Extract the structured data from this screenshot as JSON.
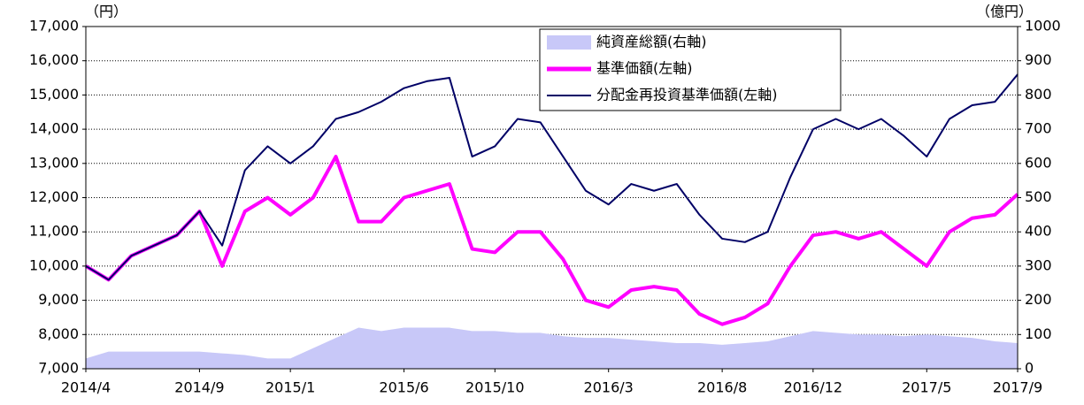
{
  "chart_data": {
    "type": "line",
    "y_label": "（円）",
    "y2_label": "（億円）",
    "x": [
      "2014/4",
      "2014/5",
      "2014/6",
      "2014/7",
      "2014/8",
      "2014/9",
      "2014/10",
      "2014/11",
      "2014/12",
      "2015/1",
      "2015/2",
      "2015/3",
      "2015/4",
      "2015/5",
      "2015/6",
      "2015/7",
      "2015/8",
      "2015/9",
      "2015/10",
      "2015/11",
      "2015/12",
      "2016/1",
      "2016/2",
      "2016/3",
      "2016/4",
      "2016/5",
      "2016/6",
      "2016/7",
      "2016/8",
      "2016/9",
      "2016/10",
      "2016/11",
      "2016/12",
      "2017/1",
      "2017/2",
      "2017/3",
      "2017/4",
      "2017/5",
      "2017/6",
      "2017/7",
      "2017/8",
      "2017/9"
    ],
    "xticks": [
      "2014/4",
      "2014/9",
      "2015/1",
      "2015/6",
      "2015/10",
      "2016/3",
      "2016/8",
      "2016/12",
      "2017/5",
      "2017/9"
    ],
    "ylim": [
      7000,
      17000
    ],
    "yticks": [
      {
        "value": 7000,
        "label": "7,000"
      },
      {
        "value": 8000,
        "label": "8,000"
      },
      {
        "value": 9000,
        "label": "9,000"
      },
      {
        "value": 10000,
        "label": "10,000"
      },
      {
        "value": 11000,
        "label": "11,000"
      },
      {
        "value": 12000,
        "label": "12,000"
      },
      {
        "value": 13000,
        "label": "13,000"
      },
      {
        "value": 14000,
        "label": "14,000"
      },
      {
        "value": 15000,
        "label": "15,000"
      },
      {
        "value": 16000,
        "label": "16,000"
      },
      {
        "value": 17000,
        "label": "17,000"
      }
    ],
    "y2lim": [
      0,
      1000
    ],
    "y2ticks": [
      0,
      100,
      200,
      300,
      400,
      500,
      600,
      700,
      800,
      900,
      1000
    ],
    "grid": true,
    "series": [
      {
        "name": "純資産総額(右軸)",
        "kind": "area",
        "axis": "y2",
        "color": "#c8c8f8",
        "values": [
          30,
          50,
          50,
          50,
          50,
          50,
          45,
          40,
          30,
          30,
          60,
          90,
          120,
          110,
          120,
          120,
          120,
          110,
          110,
          105,
          105,
          95,
          90,
          90,
          85,
          80,
          75,
          75,
          70,
          75,
          80,
          95,
          110,
          105,
          100,
          100,
          95,
          100,
          95,
          90,
          80,
          75
        ]
      },
      {
        "name": "基準価額(左軸)",
        "kind": "line",
        "axis": "y",
        "color": "#ff00ff",
        "values": [
          10000,
          9600,
          10300,
          10600,
          10900,
          11600,
          10000,
          11600,
          12000,
          11500,
          12000,
          13200,
          11300,
          11300,
          12000,
          12200,
          12400,
          10500,
          10400,
          11000,
          11000,
          10200,
          9000,
          8800,
          9300,
          9400,
          9300,
          8600,
          8300,
          8500,
          8900,
          10000,
          10900,
          11000,
          10800,
          11000,
          10500,
          10000,
          11000,
          11400,
          11500,
          12100
        ]
      },
      {
        "name": "分配金再投資基準価額(左軸)",
        "kind": "line",
        "axis": "y",
        "color": "#000066",
        "values": [
          10000,
          9600,
          10300,
          10600,
          10900,
          11600,
          10600,
          12800,
          13500,
          13000,
          13500,
          14300,
          14500,
          14800,
          15200,
          15400,
          15500,
          13200,
          13500,
          14300,
          14200,
          13200,
          12200,
          11800,
          12400,
          12200,
          12400,
          11500,
          10800,
          10700,
          11000,
          12600,
          14000,
          14300,
          14000,
          14300,
          13800,
          13200,
          14300,
          14700,
          14800,
          15600
        ]
      }
    ]
  }
}
